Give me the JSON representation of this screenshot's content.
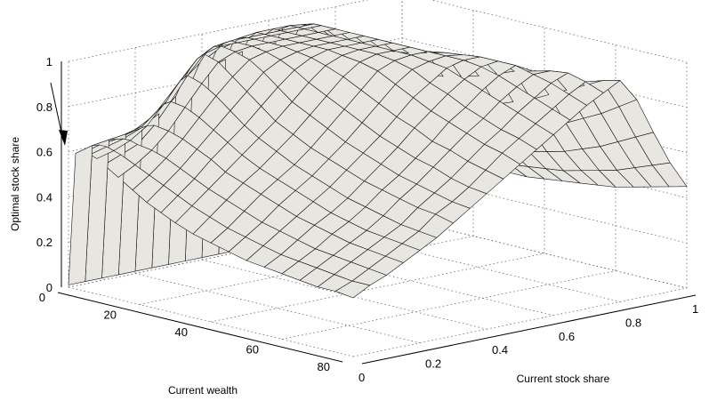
{
  "chart_data": {
    "type": "surface3d",
    "title": "",
    "xlabel": "Current wealth",
    "ylabel": "Current stock share",
    "zlabel": "Optimal stock share",
    "xlim": [
      0,
      80
    ],
    "ylim": [
      0,
      1
    ],
    "zlim": [
      0,
      1
    ],
    "x_ticks": [
      "0",
      "20",
      "40",
      "60",
      "80"
    ],
    "y_ticks": [
      "0",
      "0.2",
      "0.4",
      "0.6",
      "0.8",
      "1"
    ],
    "z_ticks": [
      "0",
      "0.2",
      "0.4",
      "0.6",
      "0.8",
      "1"
    ],
    "grid": true,
    "surface_color": "#e8e6e0",
    "edge_color": "#111111",
    "annotation": "arrow pointing to the surface edge at low wealth",
    "x": [
      0,
      2,
      4,
      6,
      8,
      10,
      14,
      18,
      22,
      26,
      30,
      35,
      40,
      45,
      50,
      55,
      60,
      65,
      70,
      75,
      80
    ],
    "y": [
      0,
      0.05,
      0.1,
      0.15,
      0.2,
      0.25,
      0.3,
      0.35,
      0.4,
      0.45,
      0.5,
      0.55,
      0.6,
      0.65,
      0.7,
      0.75,
      0.8,
      0.85,
      0.9,
      0.95,
      1.0
    ],
    "z_rows": [
      [
        0.01,
        0.6,
        0.61,
        0.61,
        0.6,
        0.58,
        0.54,
        0.5,
        0.46,
        0.43,
        0.4,
        0.37,
        0.35,
        0.33,
        0.31,
        0.3,
        0.29,
        0.28,
        0.27,
        0.27,
        0.26
      ],
      [
        0.01,
        0.62,
        0.63,
        0.63,
        0.62,
        0.61,
        0.58,
        0.55,
        0.52,
        0.49,
        0.46,
        0.43,
        0.4,
        0.38,
        0.36,
        0.34,
        0.33,
        0.32,
        0.31,
        0.3,
        0.3
      ],
      [
        0.01,
        0.63,
        0.64,
        0.65,
        0.65,
        0.64,
        0.63,
        0.61,
        0.58,
        0.55,
        0.52,
        0.49,
        0.46,
        0.43,
        0.41,
        0.39,
        0.37,
        0.36,
        0.35,
        0.34,
        0.33
      ],
      [
        0.01,
        0.64,
        0.66,
        0.68,
        0.7,
        0.71,
        0.7,
        0.68,
        0.65,
        0.62,
        0.58,
        0.55,
        0.52,
        0.49,
        0.46,
        0.44,
        0.42,
        0.4,
        0.39,
        0.38,
        0.37
      ],
      [
        0.01,
        0.66,
        0.7,
        0.74,
        0.78,
        0.8,
        0.79,
        0.76,
        0.72,
        0.68,
        0.64,
        0.6,
        0.57,
        0.54,
        0.51,
        0.48,
        0.46,
        0.44,
        0.43,
        0.42,
        0.41
      ],
      [
        0.01,
        0.7,
        0.76,
        0.82,
        0.87,
        0.9,
        0.88,
        0.84,
        0.79,
        0.74,
        0.7,
        0.66,
        0.62,
        0.59,
        0.56,
        0.53,
        0.51,
        0.49,
        0.47,
        0.46,
        0.45
      ],
      [
        0.01,
        0.76,
        0.84,
        0.9,
        0.95,
        0.98,
        0.96,
        0.91,
        0.86,
        0.81,
        0.76,
        0.72,
        0.68,
        0.65,
        0.62,
        0.59,
        0.57,
        0.55,
        0.53,
        0.52,
        0.5
      ],
      [
        0.01,
        0.82,
        0.9,
        0.96,
        0.99,
        1.0,
        0.99,
        0.97,
        0.93,
        0.88,
        0.83,
        0.79,
        0.75,
        0.71,
        0.68,
        0.65,
        0.62,
        0.6,
        0.58,
        0.56,
        0.55
      ],
      [
        0.01,
        0.86,
        0.94,
        0.98,
        1.0,
        1.0,
        1.0,
        0.99,
        0.97,
        0.94,
        0.9,
        0.86,
        0.82,
        0.78,
        0.74,
        0.71,
        0.68,
        0.66,
        0.63,
        0.61,
        0.6
      ],
      [
        0.01,
        0.88,
        0.96,
        0.99,
        1.0,
        1.0,
        1.0,
        1.0,
        0.99,
        0.98,
        0.96,
        0.93,
        0.89,
        0.85,
        0.81,
        0.78,
        0.74,
        0.72,
        0.69,
        0.67,
        0.65
      ],
      [
        0.01,
        0.9,
        0.97,
        1.0,
        1.0,
        1.0,
        1.0,
        1.0,
        1.0,
        1.0,
        0.99,
        0.98,
        0.96,
        0.92,
        0.88,
        0.84,
        0.81,
        0.78,
        0.75,
        0.73,
        0.7
      ],
      [
        0.01,
        0.9,
        0.97,
        1.0,
        1.0,
        1.0,
        1.0,
        1.0,
        1.0,
        1.0,
        1.0,
        1.0,
        0.99,
        0.97,
        0.93,
        0.9,
        0.86,
        0.83,
        0.8,
        0.78,
        0.75
      ],
      [
        0.01,
        0.91,
        0.98,
        1.0,
        1.0,
        1.0,
        1.0,
        1.0,
        1.0,
        1.0,
        1.0,
        1.0,
        1.0,
        0.99,
        0.98,
        0.95,
        0.92,
        0.89,
        0.86,
        0.83,
        0.8
      ],
      [
        0.01,
        0.9,
        0.97,
        0.99,
        1.0,
        1.0,
        1.0,
        1.0,
        1.0,
        1.0,
        1.0,
        1.0,
        1.0,
        1.0,
        1.0,
        0.99,
        0.97,
        0.94,
        0.91,
        0.88,
        0.85
      ],
      [
        0.01,
        0.85,
        0.9,
        0.92,
        0.93,
        0.93,
        0.93,
        0.93,
        0.93,
        0.93,
        0.94,
        0.96,
        0.98,
        0.99,
        1.0,
        1.0,
        1.0,
        0.98,
        0.96,
        0.93,
        0.9
      ],
      [
        0.01,
        0.75,
        0.78,
        0.8,
        0.8,
        0.8,
        0.8,
        0.8,
        0.81,
        0.82,
        0.83,
        0.84,
        0.86,
        0.88,
        0.91,
        0.94,
        0.96,
        0.98,
        0.99,
        0.97,
        0.94
      ],
      [
        0.01,
        0.62,
        0.64,
        0.65,
        0.66,
        0.66,
        0.66,
        0.67,
        0.67,
        0.68,
        0.69,
        0.7,
        0.72,
        0.74,
        0.77,
        0.8,
        0.84,
        0.88,
        0.92,
        0.96,
        0.98
      ],
      [
        0.01,
        0.5,
        0.52,
        0.53,
        0.53,
        0.54,
        0.54,
        0.55,
        0.55,
        0.56,
        0.57,
        0.58,
        0.6,
        0.62,
        0.64,
        0.67,
        0.7,
        0.74,
        0.78,
        0.83,
        0.88
      ],
      [
        0.01,
        0.4,
        0.42,
        0.43,
        0.43,
        0.44,
        0.44,
        0.45,
        0.45,
        0.46,
        0.46,
        0.47,
        0.48,
        0.5,
        0.52,
        0.54,
        0.57,
        0.6,
        0.64,
        0.68,
        0.72
      ],
      [
        0.01,
        0.32,
        0.34,
        0.35,
        0.35,
        0.36,
        0.36,
        0.37,
        0.37,
        0.38,
        0.38,
        0.39,
        0.4,
        0.41,
        0.42,
        0.44,
        0.46,
        0.48,
        0.51,
        0.54,
        0.57
      ],
      [
        0.01,
        0.26,
        0.27,
        0.28,
        0.29,
        0.29,
        0.3,
        0.3,
        0.31,
        0.31,
        0.32,
        0.32,
        0.33,
        0.34,
        0.35,
        0.36,
        0.37,
        0.39,
        0.41,
        0.43,
        0.45
      ]
    ]
  }
}
